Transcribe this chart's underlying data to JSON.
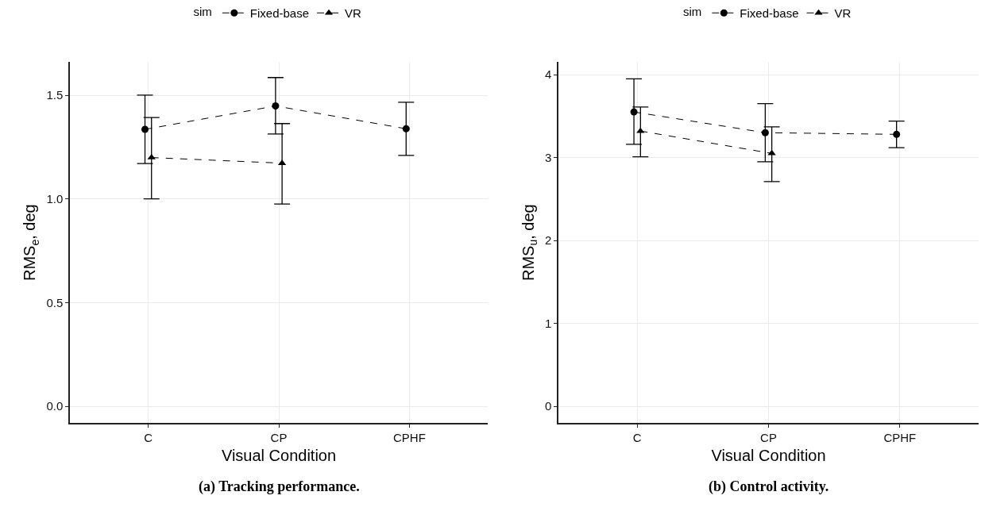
{
  "chart_data": [
    {
      "type": "line",
      "title": "(a) Tracking performance.",
      "xlabel": "Visual Condition",
      "ylabel": "RMS$_{e}$, deg",
      "legend_title": "sim",
      "legend": "top",
      "grid": true,
      "line_style": "dashed",
      "categories": [
        "C",
        "CP",
        "CPHF"
      ],
      "ylim": [
        -0.08,
        1.66
      ],
      "yticks": [
        {
          "value": 0,
          "label": "0.0"
        },
        0.5,
        {
          "value": 1,
          "label": "1.0"
        },
        1.5
      ],
      "series": [
        {
          "name": "Fixed-base",
          "color": "#000000",
          "marker": "circle",
          "values": [
            1.336,
            1.449,
            1.339
          ],
          "errors": [
            [
              1.171,
              1.501
            ],
            [
              1.314,
              1.586
            ],
            [
              1.21,
              1.467
            ]
          ]
        },
        {
          "name": "VR",
          "color": "#000000",
          "marker": "triangle",
          "values": [
            1.2,
            1.173,
            null
          ],
          "errors": [
            [
              1.001,
              1.393
            ],
            [
              0.976,
              1.364
            ],
            null
          ]
        }
      ]
    },
    {
      "type": "line",
      "title": "(b) Control activity.",
      "xlabel": "Visual Condition",
      "ylabel": "RMS$_{u}$, deg",
      "legend_title": "sim",
      "legend": "top",
      "grid": true,
      "line_style": "dashed",
      "categories": [
        "C",
        "CP",
        "CPHF"
      ],
      "ylim": [
        -0.2,
        4.15
      ],
      "yticks": [
        0,
        1,
        2,
        3,
        4
      ],
      "series": [
        {
          "name": "Fixed-base",
          "color": "#000000",
          "marker": "circle",
          "values": [
            3.55,
            3.3,
            3.28
          ],
          "errors": [
            [
              3.16,
              3.95
            ],
            [
              2.95,
              3.65
            ],
            [
              3.12,
              3.44
            ]
          ]
        },
        {
          "name": "VR",
          "color": "#000000",
          "marker": "triangle",
          "values": [
            3.32,
            3.05,
            null
          ],
          "errors": [
            [
              3.01,
              3.61
            ],
            [
              2.71,
              3.37
            ],
            null
          ]
        }
      ]
    }
  ]
}
